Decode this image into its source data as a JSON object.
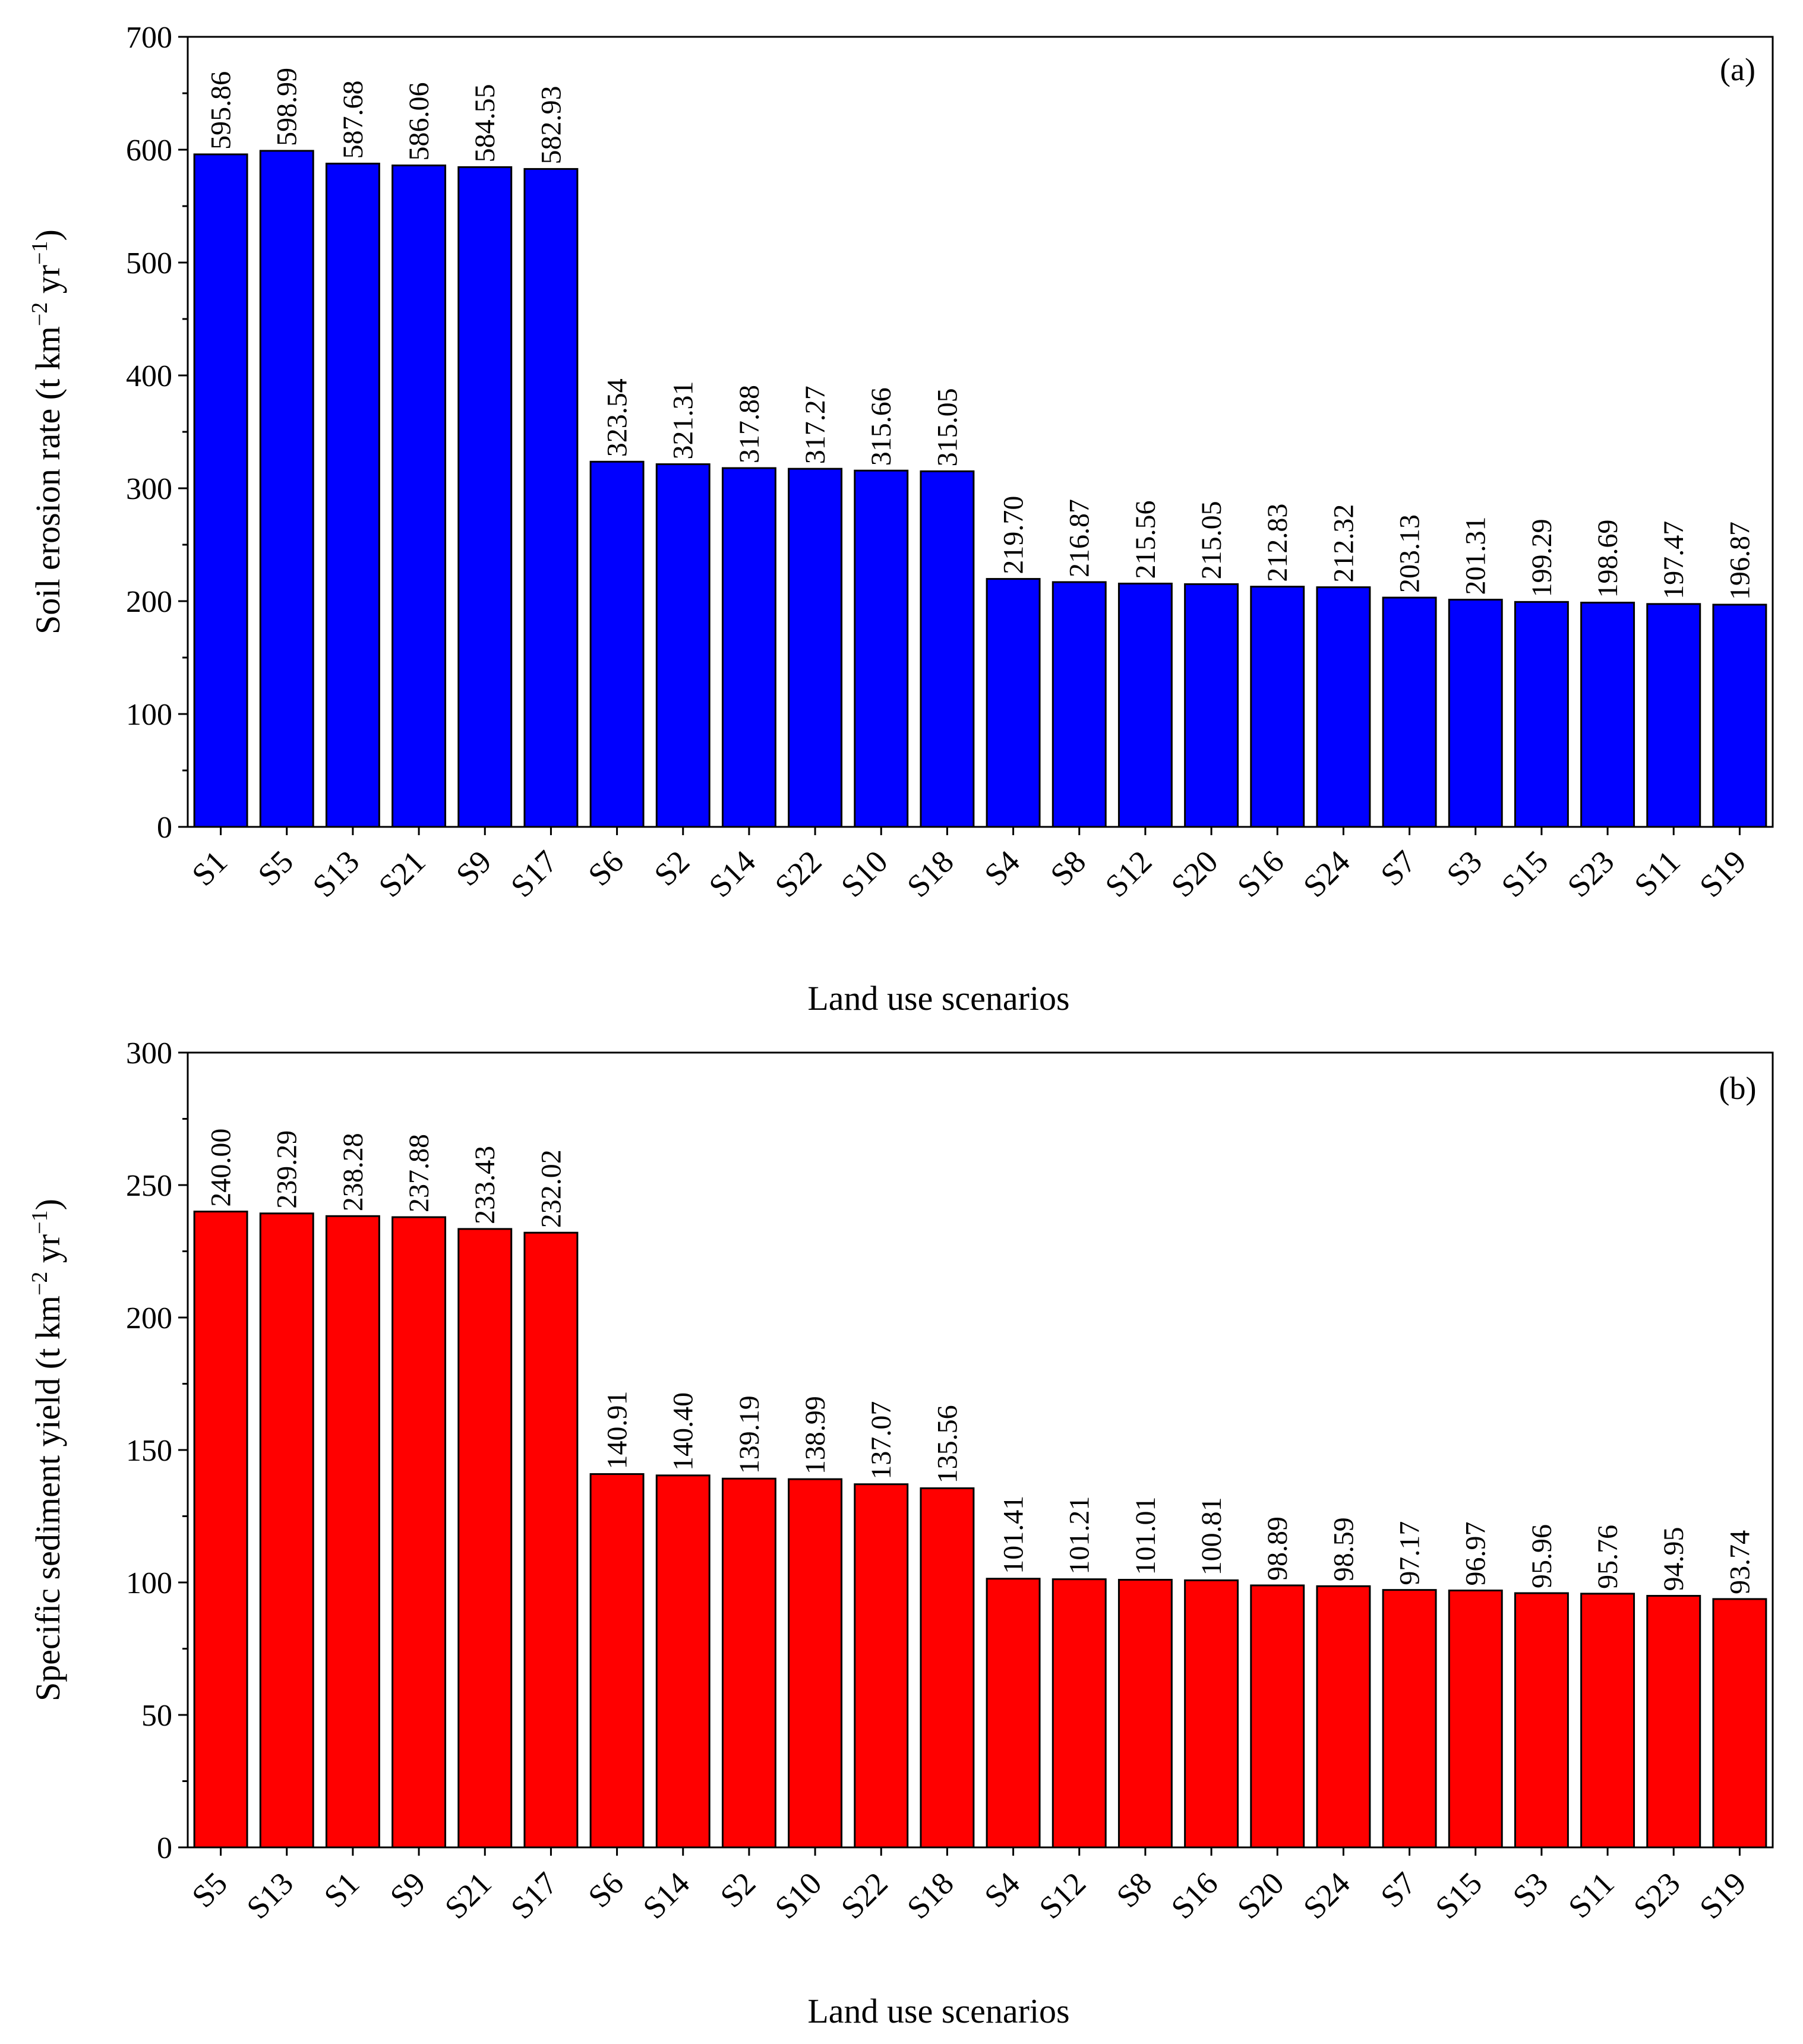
{
  "chart_data": [
    {
      "type": "bar",
      "panel_label": "(a)",
      "color": "#0000FF",
      "categories": [
        "S1",
        "S5",
        "S13",
        "S21",
        "S9",
        "S17",
        "S6",
        "S2",
        "S14",
        "S22",
        "S10",
        "S18",
        "S4",
        "S8",
        "S12",
        "S20",
        "S16",
        "S24",
        "S7",
        "S3",
        "S15",
        "S23",
        "S11",
        "S19"
      ],
      "values": [
        595.86,
        598.99,
        587.68,
        586.06,
        584.55,
        582.93,
        323.54,
        321.31,
        317.88,
        317.27,
        315.66,
        315.05,
        219.7,
        216.87,
        215.56,
        215.05,
        212.83,
        212.32,
        203.13,
        201.31,
        199.29,
        198.69,
        197.47,
        196.87
      ],
      "data_labels": [
        "595.86",
        "598.99",
        "587.68",
        "586.06",
        "584.55",
        "582.93",
        "323.54",
        "321.31",
        "317.88",
        "317.27",
        "315.66",
        "315.05",
        "219.70",
        "216.87",
        "215.56",
        "215.05",
        "212.83",
        "212.32",
        "203.13",
        "201.31",
        "199.29",
        "198.69",
        "197.47",
        "196.87"
      ],
      "ylabel_main": "Soil erosion rate (t km",
      "ylabel_sup1": "−2",
      "ylabel_mid": " yr",
      "ylabel_sup2": "−1",
      "ylabel_end": ")",
      "xlabel": "Land use scenarios",
      "ylim": [
        0,
        700
      ],
      "yticks": [
        0,
        100,
        200,
        300,
        400,
        500,
        600,
        700
      ],
      "ytick_labels": [
        "0",
        "100",
        "200",
        "300",
        "400",
        "500",
        "600",
        "700"
      ]
    },
    {
      "type": "bar",
      "panel_label": "(b)",
      "color": "#FF0000",
      "categories": [
        "S5",
        "S13",
        "S1",
        "S9",
        "S21",
        "S17",
        "S6",
        "S14",
        "S2",
        "S10",
        "S22",
        "S18",
        "S4",
        "S12",
        "S8",
        "S16",
        "S20",
        "S24",
        "S7",
        "S15",
        "S3",
        "S11",
        "S23",
        "S19"
      ],
      "values": [
        240.0,
        239.29,
        238.28,
        237.88,
        233.43,
        232.02,
        140.91,
        140.4,
        139.19,
        138.99,
        137.07,
        135.56,
        101.41,
        101.21,
        101.01,
        100.81,
        98.89,
        98.59,
        97.17,
        96.97,
        95.96,
        95.76,
        94.95,
        93.74
      ],
      "data_labels": [
        "240.00",
        "239.29",
        "238.28",
        "237.88",
        "233.43",
        "232.02",
        "140.91",
        "140.40",
        "139.19",
        "138.99",
        "137.07",
        "135.56",
        "101.41",
        "101.21",
        "101.01",
        "100.81",
        "98.89",
        "98.59",
        "97.17",
        "96.97",
        "95.96",
        "95.76",
        "94.95",
        "93.74"
      ],
      "ylabel_main": "Specific sediment yield (t km",
      "ylabel_sup1": "−2",
      "ylabel_mid": " yr",
      "ylabel_sup2": "−1",
      "ylabel_end": ")",
      "xlabel": "Land use scenarios",
      "ylim": [
        0,
        300
      ],
      "yticks": [
        0,
        50,
        100,
        150,
        200,
        250,
        300
      ],
      "ytick_labels": [
        "0",
        "50",
        "100",
        "150",
        "200",
        "250",
        "300"
      ]
    }
  ]
}
